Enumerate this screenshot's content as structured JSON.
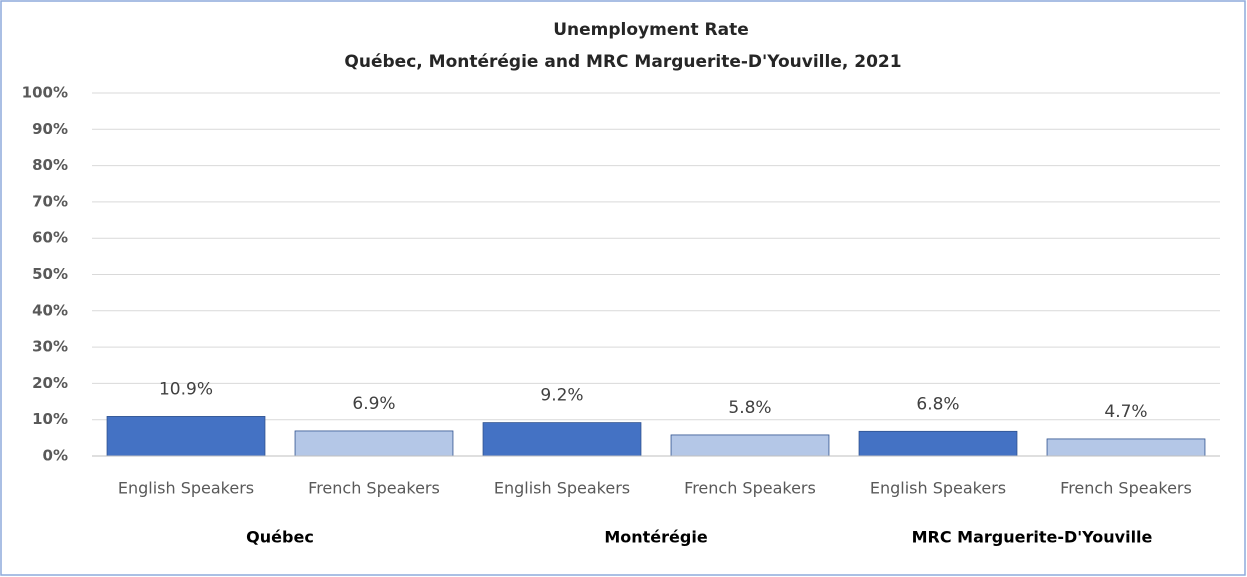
{
  "chart_data": {
    "type": "bar",
    "title": "Unemployment Rate",
    "subtitle": "Québec, Montérégie and MRC Marguerite-D'Youville,  2021",
    "categories": [
      "English Speakers",
      "French Speakers",
      "English Speakers",
      "French Speakers",
      "English Speakers",
      "French Speakers"
    ],
    "groups": [
      "Québec",
      "Montérégie",
      "MRC Marguerite-D'Youville"
    ],
    "values": [
      10.9,
      6.9,
      9.2,
      5.8,
      6.8,
      4.7
    ],
    "value_labels": [
      "10.9%",
      "6.9%",
      "9.2%",
      "5.8%",
      "6.8%",
      "4.7%"
    ],
    "colors": [
      "#4472c4",
      "#b4c7e7",
      "#4472c4",
      "#b4c7e7",
      "#4472c4",
      "#b4c7e7"
    ],
    "ylim": [
      0,
      100
    ],
    "yticks": [
      {
        "value": 0,
        "label": "0%"
      },
      {
        "value": 10,
        "label": "10%"
      },
      {
        "value": 20,
        "label": "20%"
      },
      {
        "value": 30,
        "label": "30%"
      },
      {
        "value": 40,
        "label": "40%"
      },
      {
        "value": 50,
        "label": "50%"
      },
      {
        "value": 60,
        "label": "60%"
      },
      {
        "value": 70,
        "label": "70%"
      },
      {
        "value": 80,
        "label": "80%"
      },
      {
        "value": 90,
        "label": "90%"
      },
      {
        "value": 100,
        "label": "100%"
      }
    ],
    "grid": true
  }
}
